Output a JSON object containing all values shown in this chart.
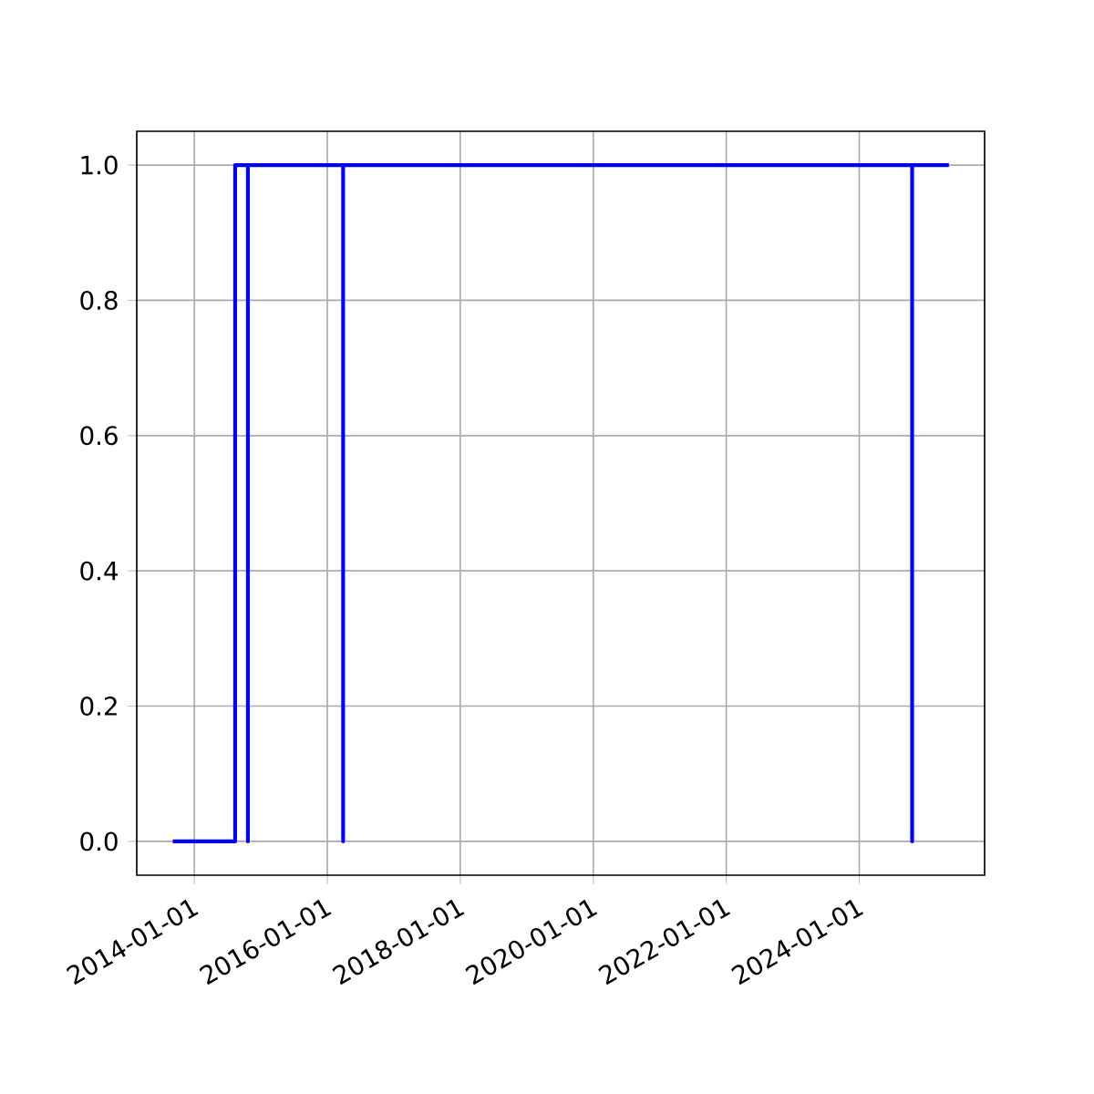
{
  "chart_data": {
    "type": "step",
    "x": [
      "2013-09-05",
      "2014-08-13",
      "2014-10-22",
      "2014-10-22",
      "2016-03-28",
      "2016-03-28",
      "2024-10-18",
      "2024-10-18",
      "2025-05-08"
    ],
    "values": [
      0,
      1,
      0,
      1,
      0,
      1,
      0,
      1,
      1
    ],
    "color": "#0000ff",
    "xlim": [
      "2013-02-19",
      "2025-11-20"
    ],
    "xticks": [
      "2014-01-01",
      "2016-01-01",
      "2018-01-01",
      "2020-01-01",
      "2022-01-01",
      "2024-01-01"
    ],
    "ylim": [
      -0.05,
      1.05
    ],
    "yticks": [
      {
        "value": 0,
        "label": "0.0"
      },
      {
        "value": 0.2,
        "label": "0.2"
      },
      {
        "value": 0.4,
        "label": "0.4"
      },
      {
        "value": 0.6,
        "label": "0.6"
      },
      {
        "value": 0.8,
        "label": "0.8"
      },
      {
        "value": 1,
        "label": "1.0"
      }
    ],
    "grid": true
  }
}
